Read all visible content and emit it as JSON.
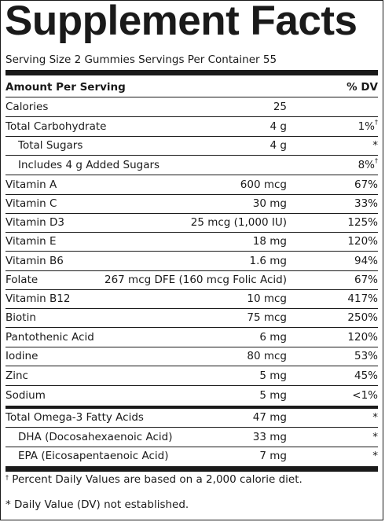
{
  "title": "Supplement Facts",
  "serving_line": "Serving Size 2 Gummies Servings Per Container 55",
  "header": {
    "amount_label": "Amount Per Serving",
    "dv_label": "% DV"
  },
  "calories": {
    "name": "Calories",
    "amount": "25"
  },
  "rows": [
    {
      "name": "Total Carbohydrate",
      "amount": "4 g",
      "dv": "1%",
      "mark": "†"
    },
    {
      "name": "Total Sugars",
      "amount": "4 g",
      "dv": "*",
      "mark": ""
    },
    {
      "name": "Includes 4 g Added Sugars",
      "amount": "",
      "dv": "8%",
      "mark": "†"
    },
    {
      "name": "Vitamin A",
      "amount": "600 mcg",
      "dv": "67%",
      "mark": ""
    },
    {
      "name": "Vitamin C",
      "amount": "30 mg",
      "dv": "33%",
      "mark": ""
    },
    {
      "name": "Vitamin D3",
      "amount": "25 mcg (1,000 IU)",
      "dv": "125%",
      "mark": ""
    },
    {
      "name": "Vitamin E",
      "amount": "18 mg",
      "dv": "120%",
      "mark": ""
    },
    {
      "name": "Vitamin B6",
      "amount": "1.6 mg",
      "dv": "94%",
      "mark": ""
    },
    {
      "name": "Folate",
      "amount": "267 mcg DFE (160 mcg Folic Acid)",
      "dv": "67%",
      "mark": ""
    },
    {
      "name": "Vitamin B12",
      "amount": "10 mcg",
      "dv": "417%",
      "mark": ""
    },
    {
      "name": "Biotin",
      "amount": "75 mcg",
      "dv": "250%",
      "mark": ""
    },
    {
      "name": "Pantothenic Acid",
      "amount": "6 mg",
      "dv": "120%",
      "mark": ""
    },
    {
      "name": "Iodine",
      "amount": "80 mcg",
      "dv": "53%",
      "mark": ""
    },
    {
      "name": "Zinc",
      "amount": "5 mg",
      "dv": "45%",
      "mark": ""
    },
    {
      "name": "Sodium",
      "amount": "5 mg",
      "dv": "<1%",
      "mark": ""
    }
  ],
  "omega_rows": [
    {
      "name": "Total Omega-3 Fatty Acids",
      "amount": "47 mg",
      "dv": "*"
    },
    {
      "name": "DHA (Docosahexaenoic Acid)",
      "amount": "33 mg",
      "dv": "*"
    },
    {
      "name": "EPA (Eicosapentaenoic Acid)",
      "amount": "7 mg",
      "dv": "*"
    }
  ],
  "footnotes": {
    "dagger_mark": "†",
    "dagger_text": " Percent Daily Values are based on a 2,000 calorie diet.",
    "star_text": "* Daily Value (DV) not established."
  }
}
